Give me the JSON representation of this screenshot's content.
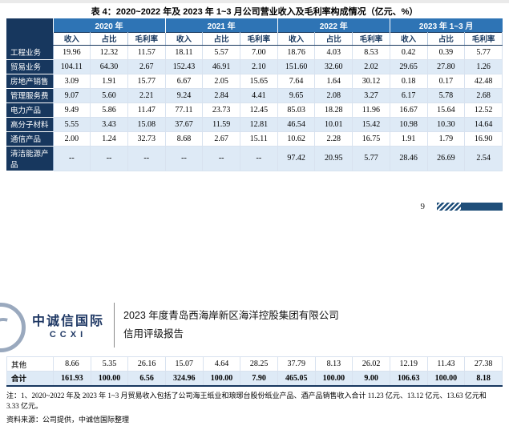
{
  "colors": {
    "navy": "#17375E",
    "blue": "#2E74B5",
    "band": "#DEEAF6",
    "bar": "#1F4E79"
  },
  "table": {
    "title": "表 4：2020~2022 年及 2023 年 1~3 月公司营业收入及毛利率构成情况（亿元、%）",
    "year_groups": [
      "2020 年",
      "2021 年",
      "2022 年",
      "2023 年 1~3 月"
    ],
    "sub_headers": [
      "收入",
      "占比",
      "毛利率"
    ],
    "rows": [
      {
        "label": "工程业务",
        "values": [
          "19.96",
          "12.32",
          "11.57",
          "18.11",
          "5.57",
          "7.00",
          "18.76",
          "4.03",
          "8.53",
          "0.42",
          "0.39",
          "5.77"
        ]
      },
      {
        "label": "贸易业务",
        "values": [
          "104.11",
          "64.30",
          "2.67",
          "152.43",
          "46.91",
          "2.10",
          "151.60",
          "32.60",
          "2.02",
          "29.65",
          "27.80",
          "1.26"
        ]
      },
      {
        "label": "房地产销售",
        "values": [
          "3.09",
          "1.91",
          "15.77",
          "6.67",
          "2.05",
          "15.65",
          "7.64",
          "1.64",
          "30.12",
          "0.18",
          "0.17",
          "42.48"
        ]
      },
      {
        "label": "管理服务费",
        "values": [
          "9.07",
          "5.60",
          "2.21",
          "9.24",
          "2.84",
          "4.41",
          "9.65",
          "2.08",
          "3.27",
          "6.17",
          "5.78",
          "2.68"
        ]
      },
      {
        "label": "电力产品",
        "values": [
          "9.49",
          "5.86",
          "11.47",
          "77.11",
          "23.73",
          "12.45",
          "85.03",
          "18.28",
          "11.96",
          "16.67",
          "15.64",
          "12.52"
        ]
      },
      {
        "label": "高分子材料",
        "values": [
          "5.55",
          "3.43",
          "15.08",
          "37.67",
          "11.59",
          "12.81",
          "46.54",
          "10.01",
          "15.42",
          "10.98",
          "10.30",
          "14.64"
        ]
      },
      {
        "label": "通信产品",
        "values": [
          "2.00",
          "1.24",
          "32.73",
          "8.68",
          "2.67",
          "15.11",
          "10.62",
          "2.28",
          "16.75",
          "1.91",
          "1.79",
          "16.90"
        ]
      },
      {
        "label": "清洁能源产品",
        "values": [
          "--",
          "--",
          "--",
          "--",
          "--",
          "--",
          "97.42",
          "20.95",
          "5.77",
          "28.46",
          "26.69",
          "2.54"
        ]
      }
    ],
    "continued_rows": [
      {
        "label": "其他",
        "values": [
          "8.66",
          "5.35",
          "26.16",
          "15.07",
          "4.64",
          "28.25",
          "37.79",
          "8.13",
          "26.02",
          "12.19",
          "11.43",
          "27.38"
        ]
      },
      {
        "label": "合计",
        "bold": true,
        "values": [
          "161.93",
          "100.00",
          "6.56",
          "324.96",
          "100.00",
          "7.90",
          "465.05",
          "100.00",
          "9.00",
          "106.63",
          "100.00",
          "8.18"
        ]
      }
    ]
  },
  "page_footer": {
    "page_number": "9"
  },
  "report_header": {
    "logo_cn": "中诚信国际",
    "logo_en": "CCXI",
    "title_line1": "2023 年度青岛西海岸新区海洋控股集团有限公司",
    "title_line2": "信用评级报告"
  },
  "notes": {
    "note1": "注：1、2020~2022 年及 2023 年 1~3 月贸易收入包括了公司海王纸业和琅琊台股份纸业产品、酒产品销售收入合计 11.23 亿元、13.12 亿元、13.63 亿元和 3.33 亿元。",
    "source": "资料来源：公司提供，中诚信国际整理"
  }
}
